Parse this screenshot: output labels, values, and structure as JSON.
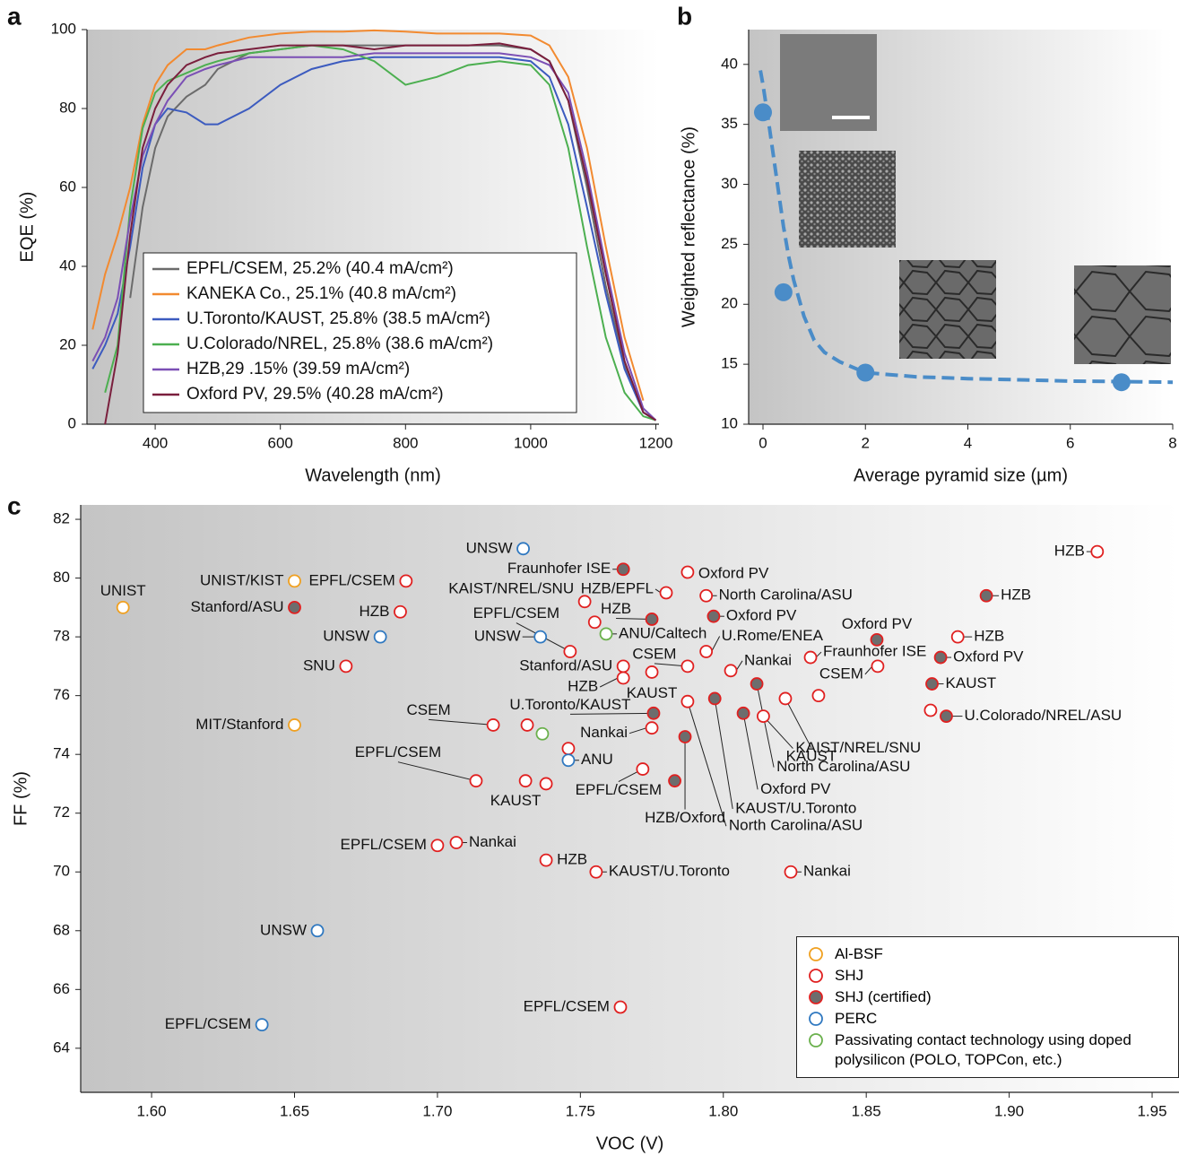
{
  "chart_data": [
    {
      "type": "line",
      "panel_label": "a",
      "x_label": "Wavelength (nm)",
      "y_label": "EQE (%)",
      "xlim": [
        291,
        1205
      ],
      "ylim": [
        0,
        100
      ],
      "xticks": [
        400,
        600,
        800,
        1000,
        1200
      ],
      "yticks": [
        0,
        20,
        40,
        60,
        80,
        100
      ],
      "x": [
        300,
        320,
        340,
        360,
        380,
        400,
        420,
        450,
        480,
        500,
        550,
        600,
        650,
        700,
        750,
        800,
        850,
        900,
        950,
        1000,
        1030,
        1060,
        1090,
        1120,
        1150,
        1180,
        1200
      ],
      "series": [
        {
          "name": "EPFL/CSEM, 25.2% (40.4 mA/cm²)",
          "color": "#6b6b6b",
          "values": [
            null,
            null,
            null,
            32,
            55,
            70,
            78,
            83,
            86,
            90,
            94,
            95,
            96,
            96,
            96,
            96,
            96,
            96,
            96,
            95,
            92,
            82,
            60,
            35,
            15,
            3,
            1
          ]
        },
        {
          "name": "KANEKA Co., 25.1% (40.8 mA/cm²)",
          "color": "#f28a30",
          "values": [
            24,
            38,
            48,
            60,
            76,
            86,
            91,
            95,
            95,
            96,
            98,
            99,
            99.5,
            99.5,
            99.8,
            99.5,
            99,
            99,
            99,
            98.5,
            96,
            88,
            70,
            45,
            22,
            6,
            null
          ]
        },
        {
          "name": "U.Toronto/KAUST, 25.8% (38.5 mA/cm²)",
          "color": "#3c5bbf",
          "values": [
            14,
            20,
            28,
            45,
            65,
            76,
            80,
            79,
            76,
            76,
            80,
            86,
            90,
            92,
            93,
            93,
            93,
            93,
            93,
            92,
            88,
            76,
            55,
            33,
            14,
            3,
            1
          ]
        },
        {
          "name": "U.Colorado/NREL, 25.8% (38.6 mA/cm²)",
          "color": "#4caf50",
          "values": [
            null,
            8,
            20,
            55,
            75,
            84,
            87,
            89,
            91,
            92,
            94,
            95,
            96,
            95,
            92,
            86,
            88,
            91,
            92,
            91,
            86,
            70,
            45,
            22,
            8,
            2,
            1
          ]
        },
        {
          "name": "HZB,29 .15% (39.59 mA/cm²)",
          "color": "#7b4fb5",
          "values": [
            16,
            22,
            32,
            52,
            68,
            76,
            82,
            88,
            90,
            91,
            93,
            93,
            93,
            93,
            94,
            94,
            94,
            94,
            94,
            93,
            91,
            84,
            64,
            40,
            18,
            4,
            1
          ]
        },
        {
          "name": "Oxford PV, 29.5% (40.28 mA/cm²)",
          "color": "#7a1f3d",
          "values": [
            null,
            0,
            18,
            48,
            70,
            80,
            86,
            91,
            93,
            94,
            95,
            96,
            96,
            96,
            95,
            96,
            96,
            96,
            96.5,
            95,
            92,
            82,
            62,
            38,
            16,
            3,
            1
          ]
        }
      ]
    },
    {
      "type": "scatter",
      "panel_label": "b",
      "x_label": "Average pyramid size (µm)",
      "y_label": "Weighted reflectance (%)",
      "xlim": [
        -0.28,
        8
      ],
      "ylim": [
        10,
        42.9
      ],
      "xticks": [
        0,
        2,
        4,
        6,
        8
      ],
      "yticks": [
        10,
        15,
        20,
        25,
        30,
        35,
        40
      ],
      "color": "#4a8cc8",
      "x": [
        0,
        0.4,
        2,
        7
      ],
      "values": [
        36.0,
        21.0,
        14.3,
        13.5
      ],
      "fit": {
        "x": [
          -0.05,
          0,
          0.1,
          0.2,
          0.3,
          0.4,
          0.5,
          0.6,
          0.8,
          1,
          1.2,
          1.5,
          2,
          3,
          4,
          5,
          6,
          7,
          8
        ],
        "values": [
          39.5,
          38.3,
          35.5,
          32.5,
          29.5,
          26.5,
          24,
          22,
          19,
          17,
          16,
          15.2,
          14.3,
          13.95,
          13.8,
          13.7,
          13.6,
          13.55,
          13.5
        ]
      }
    },
    {
      "type": "scatter",
      "panel_label": "c",
      "x_label": "VOC (V)",
      "y_label": "FF (%)",
      "xlim": [
        1.5752,
        1.9594
      ],
      "ylim": [
        62.5,
        82.49
      ],
      "xticks": [
        {
          "value": 1.6,
          "label": "1.60"
        },
        {
          "value": 1.65,
          "label": "1.65"
        },
        {
          "value": 1.7,
          "label": "1.70"
        },
        {
          "value": 1.75,
          "label": "1.75"
        },
        {
          "value": 1.8,
          "label": "1.80"
        },
        {
          "value": 1.85,
          "label": "1.85"
        },
        {
          "value": 1.9,
          "label": "1.90"
        },
        {
          "value": 1.95,
          "label": "1.95"
        }
      ],
      "yticks": [
        64,
        66,
        68,
        70,
        72,
        74,
        76,
        78,
        80,
        82
      ],
      "series": [
        {
          "name": "Al-BSF",
          "color": "#f0a020",
          "fill": "#ffffff",
          "x": [
            1.59,
            1.65,
            1.65
          ],
          "values": [
            79.0,
            79.9,
            75.0
          ],
          "labels": [
            "UNIST",
            "UNIST/KIST",
            "MIT/Stanford"
          ]
        },
        {
          "name": "SHJ",
          "color": "#e02020",
          "fill": "#ffffff",
          "x": [
            1.689,
            1.687,
            1.668,
            1.7515,
            1.78,
            1.7875,
            1.794,
            1.7464,
            1.755,
            1.765,
            1.765,
            1.7875,
            1.775,
            1.7875,
            1.794,
            1.8026,
            1.8305,
            1.854,
            1.8217,
            1.8333,
            1.814,
            1.882,
            1.8725,
            1.9308,
            1.7195,
            1.7314,
            1.738,
            1.7135,
            1.7308,
            1.775,
            1.7458,
            1.7718,
            1.7066,
            1.7,
            1.738,
            1.7555,
            1.8236,
            1.764
          ],
          "values": [
            79.9,
            78.85,
            77.0,
            79.2,
            79.5,
            80.2,
            79.4,
            77.5,
            78.5,
            77.0,
            76.6,
            77.0,
            76.8,
            75.8,
            77.5,
            76.85,
            77.3,
            77.0,
            75.9,
            76.0,
            75.3,
            78.0,
            75.5,
            80.9,
            75.0,
            75.0,
            73.0,
            73.1,
            73.1,
            74.9,
            74.2,
            73.5,
            71.0,
            70.9,
            70.4,
            70.0,
            70.0,
            65.4
          ],
          "labels": [
            "EPFL/CSEM",
            "HZB",
            "SNU",
            "KAIST/NREL/SNU",
            "HZB/EPFL",
            "Oxford PV",
            "North Carolina/ASU",
            "EPFL/CSEM",
            null,
            "Stanford/ASU",
            "HZB",
            "CSEM",
            "KAUST",
            "North Carolina/ASU",
            "U.Rome/ENEA",
            "Nankai",
            "Fraunhofer ISE",
            "CSEM",
            "KAUST",
            null,
            "KAIST/NREL/SNU",
            "HZB",
            null,
            "HZB",
            "CSEM",
            null,
            null,
            "EPFL/CSEM",
            "KAUST",
            "Nankai",
            null,
            "EPFL/CSEM",
            "Nankai",
            "EPFL/CSEM",
            "HZB",
            "KAUST/U.Toronto",
            "Nankai",
            "EPFL/CSEM"
          ]
        },
        {
          "name": "SHJ (certified)",
          "color": "#e02020",
          "fill": "#6d6d6d",
          "x": [
            1.65,
            1.765,
            1.775,
            1.7966,
            1.7756,
            1.7866,
            1.783,
            1.797,
            1.807,
            1.8117,
            1.8537,
            1.876,
            1.873,
            1.878,
            1.892
          ],
          "values": [
            79.0,
            80.3,
            78.6,
            78.7,
            75.4,
            74.6,
            73.1,
            75.9,
            75.4,
            76.4,
            77.9,
            77.3,
            76.4,
            75.3,
            79.4
          ],
          "labels": [
            "Stanford/ASU",
            "Fraunhofer ISE",
            "HZB",
            "Oxford PV",
            "U.Toronto/KAUST",
            "HZB/Oxford",
            null,
            "KAUST/U.Toronto",
            "Oxford PV",
            "North Carolina/ASU",
            "Oxford PV",
            "Oxford PV",
            "KAUST",
            "U.Colorado/NREL/ASU",
            "HZB"
          ]
        },
        {
          "name": "PERC",
          "color": "#2f78c0",
          "fill": "#ffffff",
          "x": [
            1.73,
            1.68,
            1.736,
            1.7458,
            1.658,
            1.6386
          ],
          "values": [
            81.0,
            78.0,
            78.0,
            73.8,
            68.0,
            64.8
          ],
          "labels": [
            "UNSW",
            "UNSW",
            "UNSW",
            "ANU",
            "UNSW",
            "EPFL/CSEM"
          ]
        },
        {
          "name": "Passivating contact technology using doped polysilicon (POLO, TOPCon, etc.)",
          "color": "#6ab04c",
          "fill": "#ffffff",
          "x": [
            1.7367,
            1.759
          ],
          "values": [
            74.7,
            78.1
          ],
          "labels": [
            null,
            "ANU/Caltech"
          ]
        }
      ]
    }
  ]
}
